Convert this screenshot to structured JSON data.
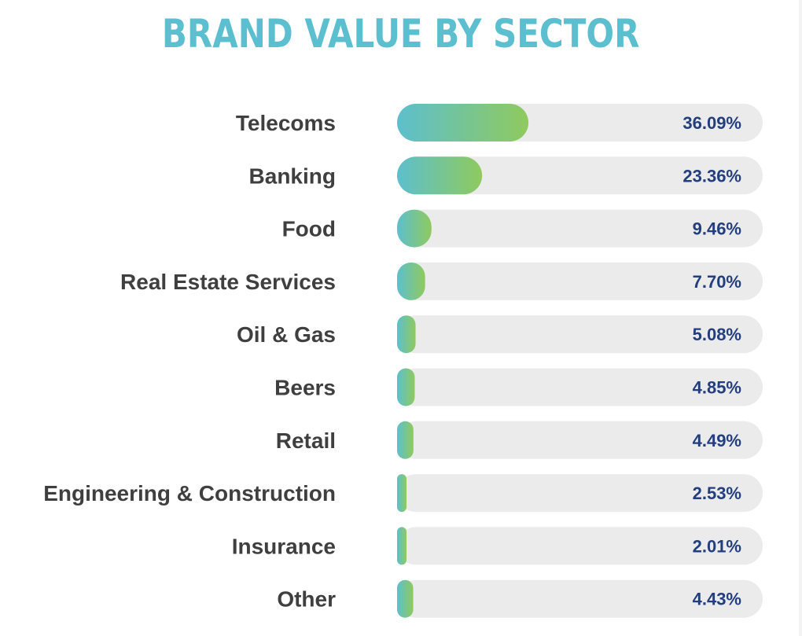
{
  "chart_data": {
    "type": "bar",
    "orientation": "horizontal",
    "title": "BRAND VALUE BY SECTOR",
    "categories": [
      "Telecoms",
      "Banking",
      "Food",
      "Real Estate Services",
      "Oil & Gas",
      "Beers",
      "Retail",
      "Engineering & Construction",
      "Insurance",
      "Other"
    ],
    "values": [
      36.09,
      23.36,
      9.46,
      7.7,
      5.08,
      4.85,
      4.49,
      2.53,
      2.01,
      4.43
    ],
    "value_labels": [
      "36.09%",
      "23.36%",
      "9.46%",
      "7.70%",
      "5.08%",
      "4.85%",
      "4.49%",
      "2.53%",
      "2.01%",
      "4.43%"
    ],
    "unit": "%",
    "xlim": [
      0,
      100
    ],
    "grid": false,
    "legend": "none",
    "colors": {
      "title": "#5bbfcf",
      "bar_start": "#5dbfcd",
      "bar_end": "#8fca5e",
      "track": "#ebebeb",
      "category_text": "#3f3f3f",
      "value_text": "#233e7c"
    }
  }
}
